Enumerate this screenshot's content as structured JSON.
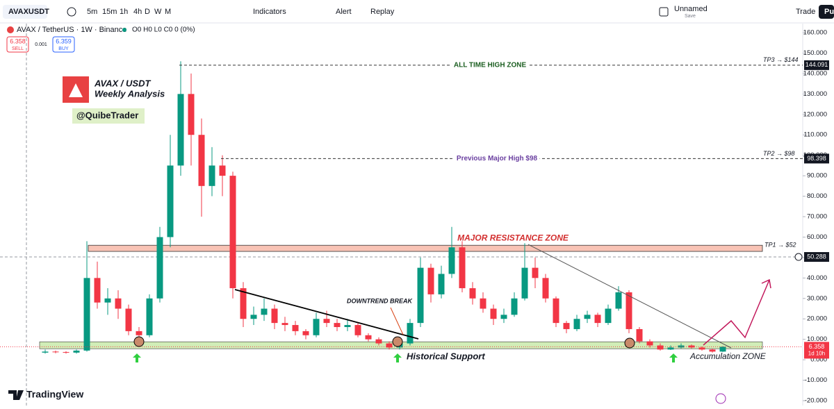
{
  "toolbar": {
    "symbol": "AVAXUSDT",
    "intervals": [
      "5m",
      "15m",
      "1h",
      "4h",
      "D",
      "W",
      "M"
    ],
    "indicators": "Indicators",
    "alert": "Alert",
    "replay": "Replay",
    "layout_name": "Unnamed",
    "save": "Save",
    "trade": "Trade",
    "publish": "Pu"
  },
  "legend": {
    "title": "AVAX / TetherUS · 1W · Binance",
    "ohlc": "O0 H0 L0 C0 0 (0%)",
    "sell_price": "6.358",
    "sell": "SELL",
    "spread": "0.001",
    "buy_price": "6.359",
    "buy": "BUY"
  },
  "branding": {
    "headline": "AVAX / USDT",
    "subheadline": "Weekly Analysis",
    "handle": "@QuibeTrader",
    "footer": "TradingView"
  },
  "chart_data": {
    "type": "candlestick",
    "candles": [
      [
        3.5,
        5,
        3,
        4
      ],
      [
        4,
        4.5,
        3.2,
        3.8
      ],
      [
        3.8,
        4.2,
        3,
        3.5
      ],
      [
        3.5,
        5,
        3,
        4.5
      ],
      [
        4.5,
        58,
        4,
        40
      ],
      [
        40,
        48,
        25,
        28
      ],
      [
        28,
        35,
        22,
        30
      ],
      [
        30,
        34,
        20,
        25
      ],
      [
        25,
        27,
        12,
        14
      ],
      [
        14,
        16,
        9,
        12
      ],
      [
        12,
        32,
        11,
        30
      ],
      [
        30,
        65,
        28,
        60
      ],
      [
        60,
        110,
        55,
        95
      ],
      [
        95,
        146,
        90,
        130
      ],
      [
        130,
        140,
        95,
        110
      ],
      [
        110,
        118,
        70,
        85
      ],
      [
        85,
        104,
        80,
        95
      ],
      [
        95,
        100,
        80,
        90
      ],
      [
        90,
        92,
        30,
        35
      ],
      [
        35,
        38,
        16,
        20
      ],
      [
        20,
        26,
        17,
        22
      ],
      [
        22,
        30,
        19,
        25
      ],
      [
        25,
        27,
        15,
        18
      ],
      [
        18,
        21,
        14,
        17
      ],
      [
        17,
        19,
        12,
        14
      ],
      [
        14,
        15,
        10,
        12
      ],
      [
        12,
        23,
        11,
        20
      ],
      [
        20,
        24,
        16,
        18
      ],
      [
        18,
        20,
        14,
        16
      ],
      [
        16,
        20,
        14,
        17
      ],
      [
        17,
        18,
        11,
        12
      ],
      [
        12,
        13,
        9,
        10
      ],
      [
        10,
        11,
        7,
        8
      ],
      [
        8,
        9,
        5,
        6
      ],
      [
        6,
        9,
        5,
        8
      ],
      [
        8,
        20,
        7,
        18
      ],
      [
        18,
        50,
        16,
        45
      ],
      [
        45,
        47,
        28,
        32
      ],
      [
        32,
        46,
        30,
        42
      ],
      [
        42,
        65,
        40,
        55
      ],
      [
        55,
        58,
        33,
        35
      ],
      [
        35,
        38,
        27,
        30
      ],
      [
        30,
        33,
        23,
        25
      ],
      [
        25,
        27,
        17,
        20
      ],
      [
        20,
        25,
        18,
        22
      ],
      [
        22,
        33,
        21,
        30
      ],
      [
        30,
        57,
        29,
        45
      ],
      [
        45,
        50,
        35,
        40
      ],
      [
        40,
        42,
        28,
        30
      ],
      [
        30,
        31,
        16,
        18
      ],
      [
        18,
        19,
        13,
        15
      ],
      [
        15,
        22,
        14,
        20
      ],
      [
        20,
        24,
        18,
        22
      ],
      [
        22,
        23,
        16,
        18
      ],
      [
        18,
        27,
        17,
        25
      ],
      [
        25,
        36,
        24,
        33
      ],
      [
        33,
        34,
        13,
        15
      ],
      [
        15,
        16,
        8,
        9
      ],
      [
        9,
        10,
        6,
        7
      ],
      [
        7,
        8,
        4.5,
        5
      ],
      [
        5,
        7,
        4.8,
        6
      ],
      [
        6,
        8,
        5.5,
        7
      ],
      [
        7,
        7.5,
        5.5,
        6
      ],
      [
        6,
        6.5,
        4.5,
        5
      ],
      [
        5,
        5.5,
        3.5,
        4
      ],
      [
        4,
        6.6,
        3.8,
        6.358
      ]
    ],
    "up_color": "#089981",
    "down_color": "#f23645",
    "ylim": [
      -20,
      160
    ],
    "yticks": [
      {
        "value": 160,
        "label": "160.000"
      },
      {
        "value": 150,
        "label": "150.000"
      },
      {
        "value": 140,
        "label": "140.000"
      },
      {
        "value": 130,
        "label": "130.000"
      },
      {
        "value": 120,
        "label": "120.000"
      },
      {
        "value": 110,
        "label": "110.000"
      },
      {
        "value": 100,
        "label": "100.000"
      },
      {
        "value": 90,
        "label": "90.000"
      },
      {
        "value": 80,
        "label": "80.000"
      },
      {
        "value": 70,
        "label": "70.000"
      },
      {
        "value": 60,
        "label": "60.000"
      },
      {
        "value": 50,
        "label": "50.000"
      },
      {
        "value": 40,
        "label": "40.000"
      },
      {
        "value": 30,
        "label": "30.000"
      },
      {
        "value": 20,
        "label": "20.000"
      },
      {
        "value": 10,
        "label": "10.000"
      },
      {
        "value": 0,
        "label": "0.000"
      },
      {
        "value": -10,
        "label": "-10.000"
      },
      {
        "value": -20,
        "label": "-20.000"
      }
    ],
    "levels": [
      {
        "label": "ALL TIME HIGH ZONE",
        "target": "TP3 → $144",
        "value": 144.091,
        "color": "#1b5e20"
      },
      {
        "label": "Previous Major High $98",
        "target": "TP2 → $98",
        "value": 98.398,
        "color": "#6a3fa0"
      }
    ],
    "resistance_zone": {
      "label": "MAJOR RESISTANCE ZONE",
      "target": "TP1 → $52",
      "range": [
        53,
        56
      ]
    },
    "support_zone": {
      "range": [
        5.4,
        8.8
      ],
      "labels": [
        "Historical Support",
        "Accumulation ZONE"
      ]
    },
    "annotations": [
      "DOWNTREND BREAK"
    ],
    "crosshair": 50.288,
    "last_price": 6.358,
    "countdown": "1d 10h"
  }
}
